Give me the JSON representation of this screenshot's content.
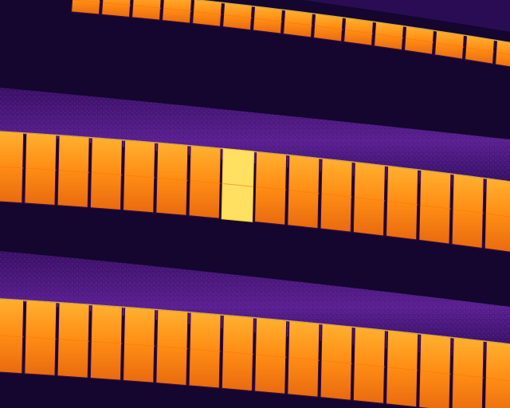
{
  "image": {
    "kind": "thermal-aerial-photo",
    "palette": {
      "background_dark": "#12062e",
      "shadow": "#0c0424",
      "grass": "#4a1878",
      "grass_light": "#6a2aa0",
      "panel_hot": "#ff9a14",
      "panel_warm": "#f07a10",
      "panel_edge": "#ffcc40",
      "panel_gap": "#3a0a40",
      "hotspot": "#ffe060"
    },
    "panel_rows": [
      {
        "name": "top-row",
        "cells": 15
      },
      {
        "name": "middle-row",
        "cells": 16,
        "hotspot_cell": 7
      },
      {
        "name": "bottom-row",
        "cells": 16
      }
    ]
  }
}
